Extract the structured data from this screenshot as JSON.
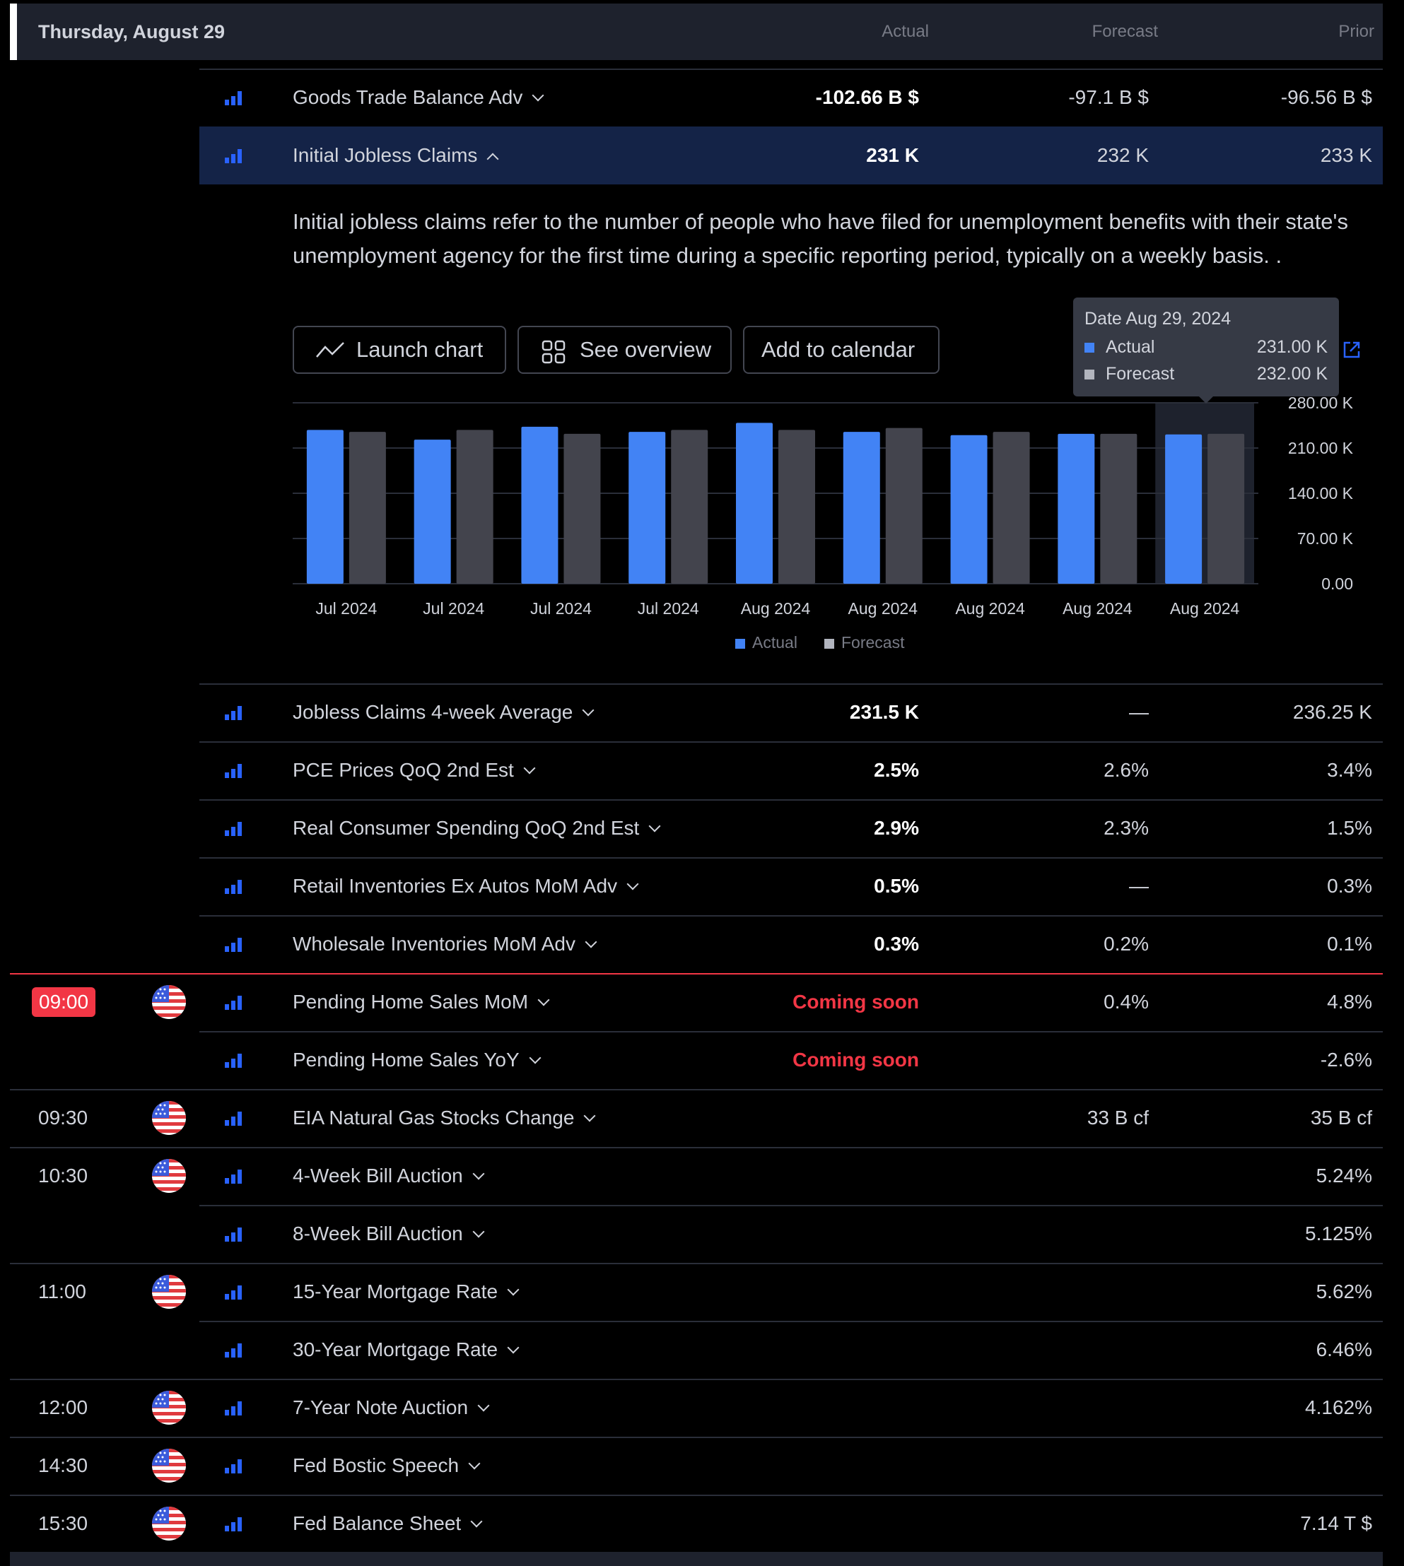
{
  "header": {
    "date": "Thursday, August 29",
    "col_actual": "Actual",
    "col_forecast": "Forecast",
    "col_prior": "Prior"
  },
  "events_before": [
    {
      "name": "Goods Trade Balance Adv",
      "actual": "-102.66 B $",
      "forecast": "-97.1 B $",
      "prior": "-96.56 B $"
    },
    {
      "name": "Initial Jobless Claims",
      "actual": "231 K",
      "forecast": "232 K",
      "prior": "233 K"
    }
  ],
  "expanded": {
    "description": "Initial jobless claims refer to the number of people who have filed for unemployment benefits with their state's unemployment agency for the first time during a specific reporting period, typically on a weekly basis. .",
    "launch_chart": "Launch chart",
    "see_overview": "See overview",
    "add_to_calendar": "Add to calendar",
    "tooltip": {
      "date": "Date Aug 29, 2024",
      "actual_label": "Actual",
      "actual_value": "231.00 K",
      "forecast_label": "Forecast",
      "forecast_value": "232.00 K"
    }
  },
  "chart_data": {
    "type": "bar",
    "categories": [
      "Jul 2024",
      "Jul 2024",
      "Jul 2024",
      "Jul 2024",
      "Aug 2024",
      "Aug 2024",
      "Aug 2024",
      "Aug 2024",
      "Aug 2024"
    ],
    "series": [
      {
        "name": "Actual",
        "values": [
          238,
          223,
          243,
          235,
          249,
          235,
          230,
          232,
          231
        ]
      },
      {
        "name": "Forecast",
        "values": [
          235,
          238,
          232,
          238,
          238,
          241,
          235,
          232,
          232
        ]
      }
    ],
    "yticks": [
      "280.00 K",
      "210.00 K",
      "140.00 K",
      "70.00 K",
      "0.00"
    ],
    "ylim": [
      0,
      280
    ],
    "colors": {
      "actual": "#4283f5",
      "forecast": "#43444d"
    },
    "legend": [
      "Actual",
      "Forecast"
    ],
    "legend_position": "bottom-center",
    "highlighted_index": 8
  },
  "events_after": [
    {
      "time": "",
      "flag": false,
      "name": "Jobless Claims 4-week Average",
      "actual": "231.5 K",
      "forecast": "—",
      "prior": "236.25 K"
    },
    {
      "time": "",
      "flag": false,
      "name": "PCE Prices QoQ 2nd Est",
      "actual": "2.5%",
      "forecast": "2.6%",
      "prior": "3.4%"
    },
    {
      "time": "",
      "flag": false,
      "name": "Real Consumer Spending QoQ 2nd Est",
      "actual": "2.9%",
      "forecast": "2.3%",
      "prior": "1.5%"
    },
    {
      "time": "",
      "flag": false,
      "name": "Retail Inventories Ex Autos MoM Adv",
      "actual": "0.5%",
      "forecast": "—",
      "prior": "0.3%"
    },
    {
      "time": "",
      "flag": false,
      "name": "Wholesale Inventories MoM Adv",
      "actual": "0.3%",
      "forecast": "0.2%",
      "prior": "0.1%"
    },
    {
      "time": "09:00",
      "flag": true,
      "now": true,
      "name": "Pending Home Sales MoM",
      "actual": "Coming soon",
      "soon": true,
      "forecast": "0.4%",
      "prior": "4.8%"
    },
    {
      "time": "",
      "flag": false,
      "name": "Pending Home Sales YoY",
      "actual": "Coming soon",
      "soon": true,
      "forecast": "",
      "prior": "-2.6%"
    },
    {
      "time": "09:30",
      "flag": true,
      "name": "EIA Natural Gas Stocks Change",
      "actual": "",
      "forecast": "33 B cf",
      "prior": "35 B cf"
    },
    {
      "time": "10:30",
      "flag": true,
      "name": "4-Week Bill Auction",
      "actual": "",
      "forecast": "",
      "prior": "5.24%"
    },
    {
      "time": "",
      "flag": false,
      "name": "8-Week Bill Auction",
      "actual": "",
      "forecast": "",
      "prior": "5.125%"
    },
    {
      "time": "11:00",
      "flag": true,
      "name": "15-Year Mortgage Rate",
      "actual": "",
      "forecast": "",
      "prior": "5.62%"
    },
    {
      "time": "",
      "flag": false,
      "name": "30-Year Mortgage Rate",
      "actual": "",
      "forecast": "",
      "prior": "6.46%"
    },
    {
      "time": "12:00",
      "flag": true,
      "name": "7-Year Note Auction",
      "actual": "",
      "forecast": "",
      "prior": "4.162%"
    },
    {
      "time": "14:30",
      "flag": true,
      "name": "Fed Bostic Speech",
      "actual": "",
      "forecast": "",
      "prior": ""
    },
    {
      "time": "15:30",
      "flag": true,
      "name": "Fed Balance Sheet",
      "actual": "",
      "forecast": "",
      "prior": "7.14 T $"
    }
  ],
  "icons": {
    "importance": "bar-chart-icon",
    "flag": "us-flag-icon"
  }
}
